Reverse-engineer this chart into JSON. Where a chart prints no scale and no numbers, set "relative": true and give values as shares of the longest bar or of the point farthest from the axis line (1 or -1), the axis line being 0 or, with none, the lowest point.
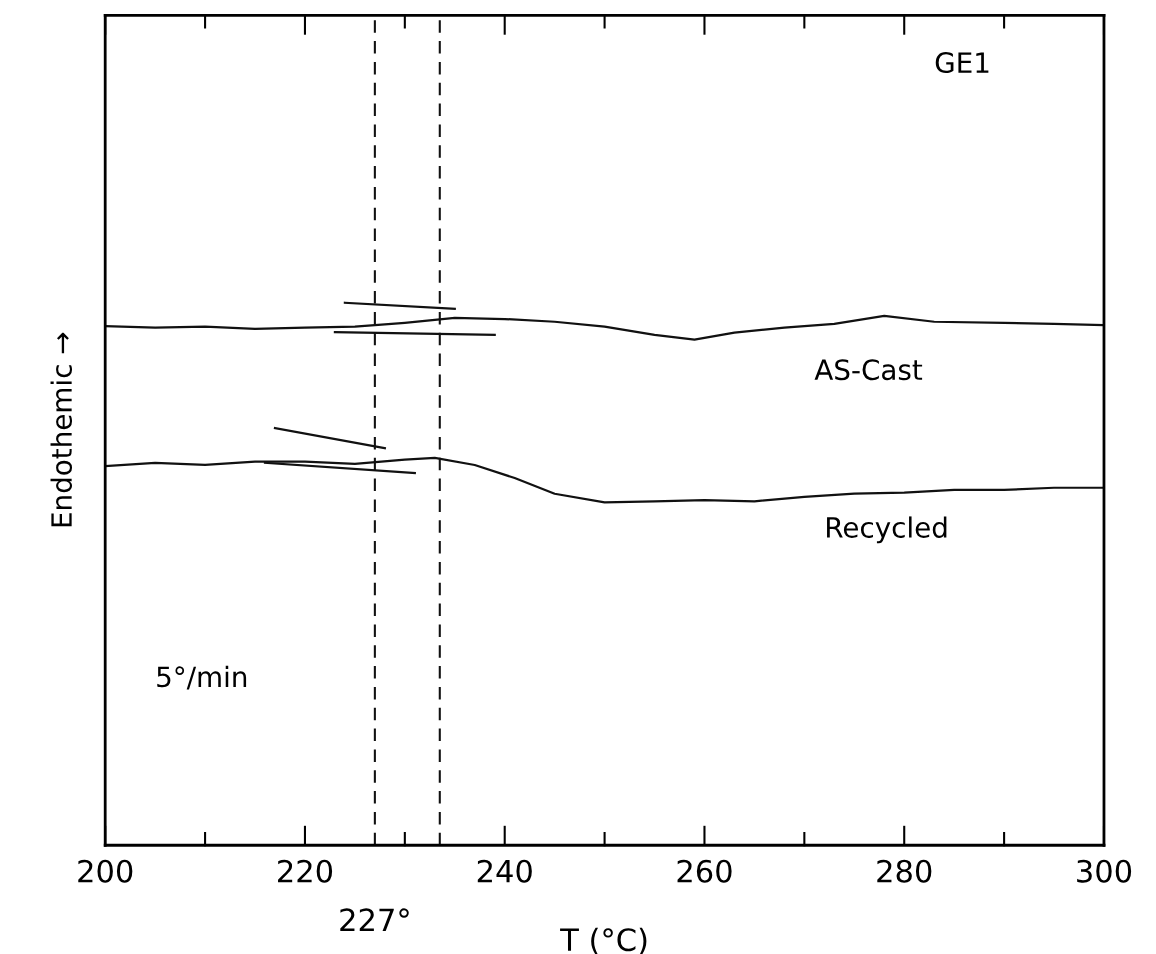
{
  "chart_data": {
    "type": "line",
    "relative": true,
    "xlabel": "T (°C)",
    "ylabel": "Endothemic →",
    "xlim": [
      200,
      300
    ],
    "xticks": [
      200,
      {
        "value": 210,
        "label": null
      },
      220,
      {
        "value": 230,
        "label": null
      },
      240,
      {
        "value": 250,
        "label": null
      },
      260,
      {
        "value": 270,
        "label": null
      },
      280,
      {
        "value": 290,
        "label": null
      },
      300
    ],
    "series": [
      {
        "color": "#111111",
        "x": [
          200,
          205,
          210,
          215,
          220,
          225,
          230,
          235,
          240,
          245,
          250,
          255,
          259,
          263,
          268,
          273,
          278,
          283,
          290,
          295,
          300
        ],
        "values": [
          0.957,
          0.954,
          0.956,
          0.952,
          0.954,
          0.956,
          0.963,
          0.972,
          0.97,
          0.965,
          0.956,
          0.941,
          0.932,
          0.945,
          0.954,
          0.961,
          0.976,
          0.965,
          0.963,
          0.961,
          0.959
        ]
      },
      {
        "color": "#111111",
        "x": [
          200,
          205,
          210,
          215,
          220,
          225,
          230,
          233,
          237,
          241,
          245,
          250,
          255,
          260,
          265,
          270,
          275,
          280,
          285,
          290,
          295,
          300
        ],
        "values": [
          0.699,
          0.705,
          0.701,
          0.707,
          0.707,
          0.703,
          0.711,
          0.714,
          0.701,
          0.677,
          0.648,
          0.632,
          0.634,
          0.636,
          0.634,
          0.642,
          0.648,
          0.65,
          0.655,
          0.655,
          0.659,
          0.659
        ]
      },
      {
        "color": "#111111",
        "x": [
          224,
          235
        ],
        "values": [
          1.0,
          0.989
        ]
      },
      {
        "color": "#111111",
        "x": [
          223,
          239
        ],
        "values": [
          0.946,
          0.941
        ]
      },
      {
        "color": "#111111",
        "x": [
          217,
          228
        ],
        "values": [
          0.769,
          0.732
        ]
      },
      {
        "color": "#111111",
        "x": [
          216,
          231
        ],
        "values": [
          0.705,
          0.686
        ]
      }
    ],
    "ref_lines": [
      {
        "axis": "x",
        "value": 233.5,
        "line_style": "dashed",
        "color": "#111111"
      },
      {
        "axis": "x",
        "value": 227,
        "label": "227°",
        "line_style": "dashed",
        "color": "#111111"
      }
    ],
    "annotations": [
      "GE1",
      "AS-Cast",
      "Recycled",
      "5°/min"
    ],
    "grid": false,
    "legend": false,
    "marker": "none",
    "line_style": "solid"
  }
}
